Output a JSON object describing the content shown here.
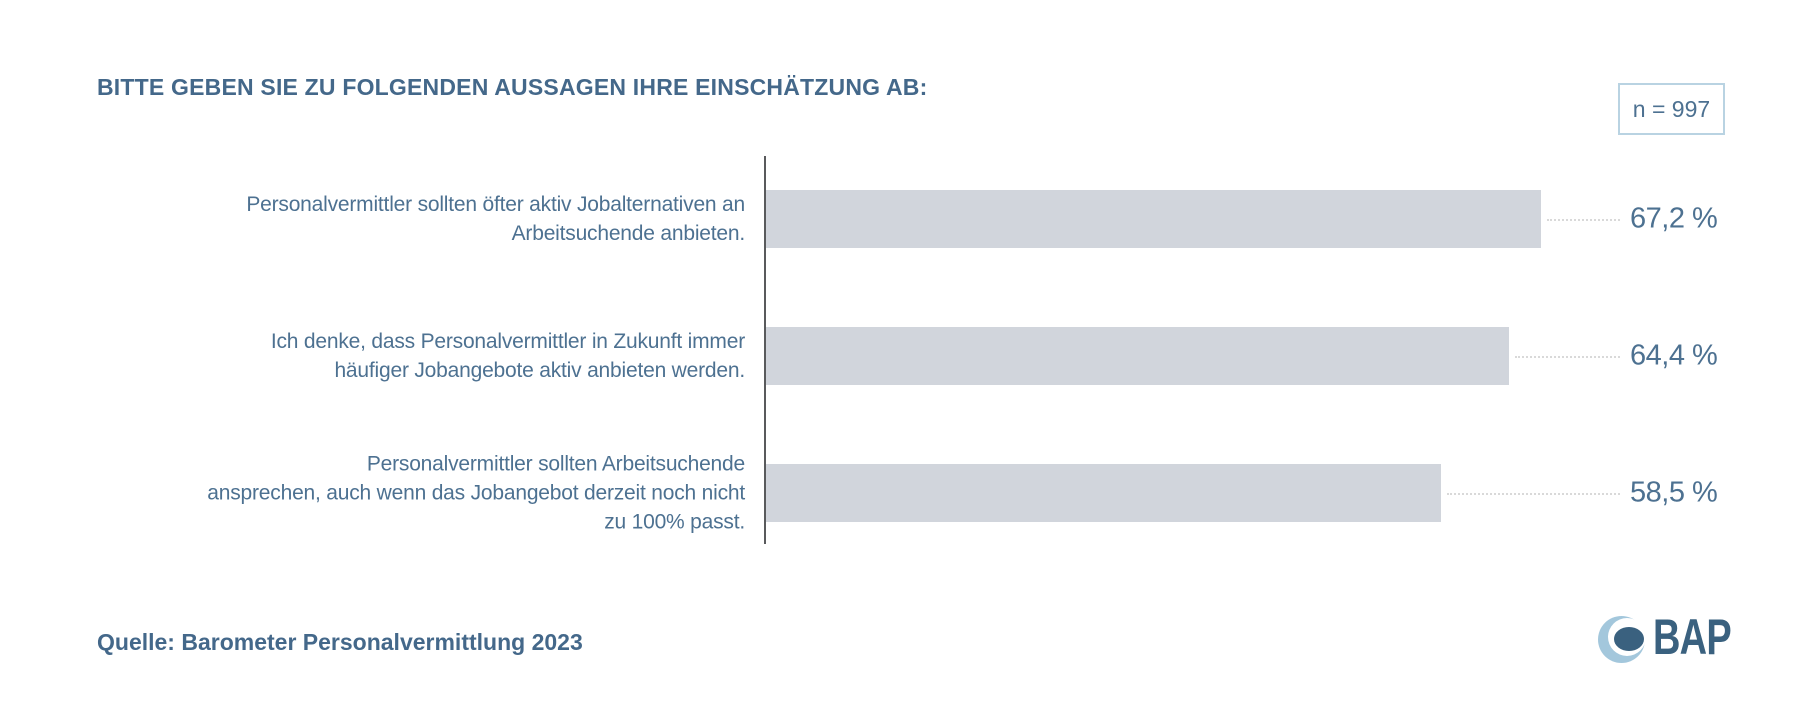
{
  "title": "BITTE GEBEN SIE ZU FOLGENDEN AUSSAGEN IHRE EINSCHÄTZUNG AB:",
  "sample_badge": "n = 997",
  "source": "Quelle: Barometer Personalvermittlung 2023",
  "logo": {
    "text": "BAP"
  },
  "colors": {
    "title_blue": "#44688a",
    "text_blue": "#4d7191",
    "bar_fill": "#d1d5dc",
    "axis_line": "#595a5c",
    "leader_dots": "#d9d9d9",
    "badge_border": "#b9d3e2",
    "logo_light": "#a3c7dc",
    "logo_dark": "#3a617f"
  },
  "labels_multiline": [
    "Personalvermittler sollten öfter aktiv Jobalternativen an\nArbeitsuchende anbieten.",
    "Ich denke, dass Personalvermittler in Zukunft immer\nhäufiger Jobangebote aktiv anbieten werden.",
    "Personalvermittler sollten Arbeitsuchende\nansprechen, auch wenn das Jobangebot derzeit noch nicht\nzu 100% passt."
  ],
  "chart_data": {
    "type": "bar",
    "orientation": "horizontal",
    "title": "BITTE GEBEN SIE ZU FOLGENDEN AUSSAGEN IHRE EINSCHÄTZUNG AB:",
    "sample_size": "n = 997",
    "source": "Quelle: Barometer Personalvermittlung 2023",
    "unit": "%",
    "categories": [
      "Personalvermittler sollten öfter aktiv Jobalternativen an Arbeitsuchende anbieten.",
      "Ich denke, dass Personalvermittler in Zukunft immer häufiger Jobangebote aktiv anbieten werden.",
      "Personalvermittler sollten Arbeitsuchende ansprechen, auch wenn das Jobangebot derzeit noch nicht zu 100% passt."
    ],
    "values": [
      67.2,
      64.4,
      58.5
    ],
    "value_labels": [
      "67,2 %",
      "64,4 %",
      "58,5 %"
    ],
    "xlim": [
      0,
      100
    ],
    "grid": false,
    "legend": false,
    "bar_color": "#d1d5dc"
  }
}
